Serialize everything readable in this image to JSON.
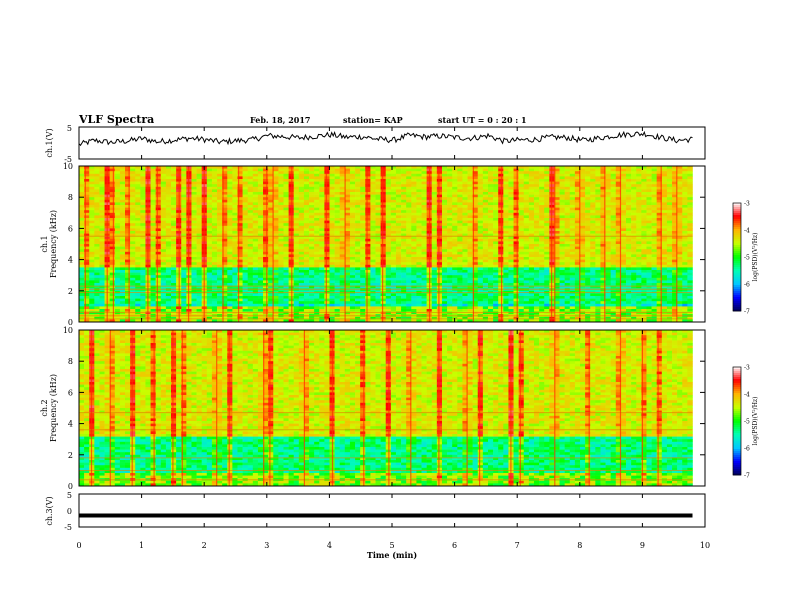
{
  "header": {
    "title": "VLF Spectra",
    "date": "Feb. 18, 2017",
    "station": "station= KAP",
    "start": "start  UT  =   0  : 20 : 1"
  },
  "chart_data": [
    {
      "type": "line",
      "name": "ch1-waveform",
      "ylabel": "ch.1(V)",
      "ylim": [
        -5,
        5
      ],
      "yticks": [
        "5",
        "-5"
      ],
      "xlim": [
        0,
        10
      ],
      "series": [
        {
          "values": [
            -0.5,
            0.8,
            0.2,
            0.6,
            1.4,
            0.4,
            0.9,
            1.5,
            1.1,
            0.3,
            0.7,
            1.0,
            2.3,
            2.0,
            1.6,
            2.1,
            2.6,
            1.8,
            2.0,
            1.2,
            0.9,
            2.4,
            1.9,
            2.2,
            1.7,
            1.5,
            2.3,
            0.6,
            0.9,
            1.1,
            1.8,
            1.7,
            0.8,
            1.5,
            2.3,
            2.8,
            2.9,
            1.7,
            0.8,
            1.2
          ]
        }
      ]
    },
    {
      "type": "heatmap",
      "name": "ch1-spectrogram",
      "ylabel": "ch.1",
      "ylabel2": "Frequency (kHz)",
      "ylim": [
        0,
        10
      ],
      "yticks": [
        "0",
        "2",
        "4",
        "6",
        "8",
        "10"
      ],
      "xlim": [
        0,
        10
      ],
      "data_xmax": 9.8,
      "colorbar": {
        "label": "log(PSD)(V²/Hz)",
        "range": [
          -7,
          -3
        ],
        "ticks": [
          "-3",
          "-4",
          "-5",
          "-6",
          "-7"
        ]
      },
      "line_freqs_khz": [
        5.5,
        2.3,
        2.1,
        1.9,
        0.6,
        0.4,
        0.2
      ],
      "spike_times_min": [
        0.1,
        0.45,
        0.55,
        0.8,
        1.1,
        1.25,
        1.6,
        1.75,
        2.0,
        2.3,
        2.55,
        3.0,
        3.1,
        3.4,
        3.95,
        4.25,
        4.6,
        4.85,
        5.6,
        5.75,
        6.3,
        6.75,
        7.0,
        7.55,
        7.6,
        8.0,
        8.4,
        8.65,
        9.3,
        9.55
      ]
    },
    {
      "type": "heatmap",
      "name": "ch2-spectrogram",
      "ylabel": "ch.2",
      "ylabel2": "Frequency (kHz)",
      "ylim": [
        0,
        10
      ],
      "yticks": [
        "0",
        "2",
        "4",
        "6",
        "8",
        "10"
      ],
      "xlim": [
        0,
        10
      ],
      "data_xmax": 9.8,
      "colorbar": {
        "label": "log(PSD)(V²/Hz)",
        "range": [
          -7,
          -3
        ],
        "ticks": [
          "-3",
          "-4",
          "-5",
          "-6",
          "-7"
        ]
      },
      "line_freqs_khz": [
        4.7,
        3.6,
        1.8,
        1.0,
        0.4
      ],
      "spike_times_min": [
        0.2,
        0.5,
        0.85,
        1.2,
        1.5,
        1.65,
        2.2,
        2.4,
        2.95,
        3.05,
        3.6,
        4.05,
        4.55,
        4.95,
        5.3,
        5.75,
        6.2,
        6.4,
        6.9,
        7.05,
        7.6,
        8.15,
        8.65,
        9.0,
        9.25
      ]
    },
    {
      "type": "line",
      "name": "ch3-waveform",
      "ylabel": "ch.3(V)",
      "ylim": [
        -5,
        5
      ],
      "yticks": [
        "5",
        "0",
        "-5"
      ],
      "xlim": [
        0,
        10
      ],
      "xlabel": "Time  (min)",
      "xticks": [
        "0",
        "1",
        "2",
        "3",
        "4",
        "5",
        "6",
        "7",
        "8",
        "9",
        "10"
      ],
      "series": [
        {
          "values": [
            -1.5,
            -1.5
          ]
        }
      ]
    }
  ],
  "colors": {
    "colormap": [
      "#00005a",
      "#0000ff",
      "#00c8ff",
      "#00ffb4",
      "#00ff00",
      "#c8ff00",
      "#ffb400",
      "#ff0000",
      "#ffffff"
    ]
  }
}
